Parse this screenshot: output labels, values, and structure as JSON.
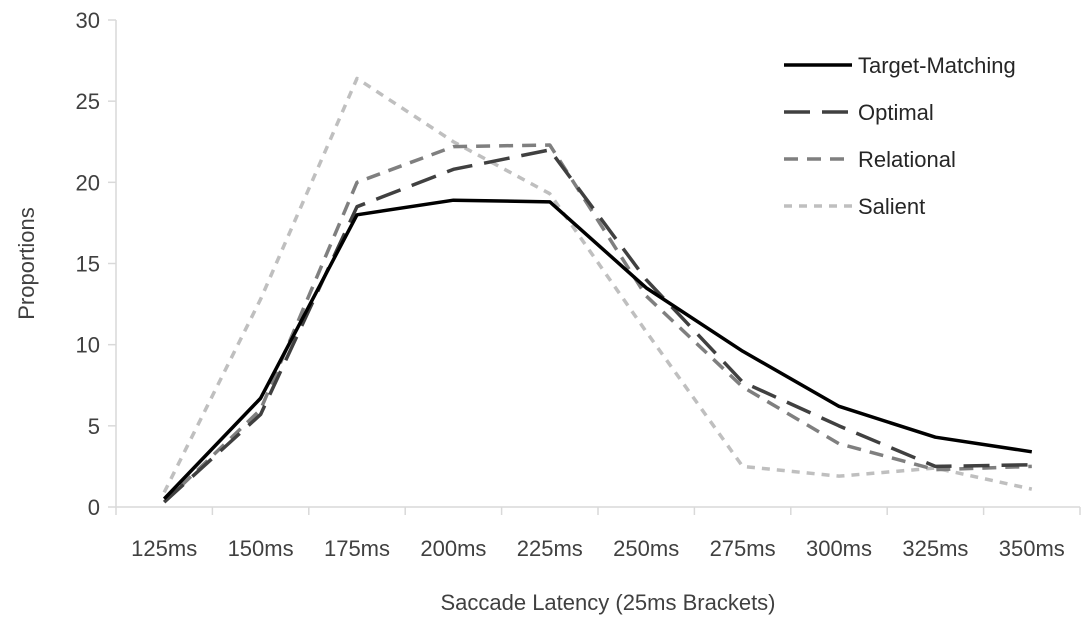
{
  "chart_data": {
    "type": "line",
    "title": "",
    "xlabel": "Saccade Latency (25ms Brackets)",
    "ylabel": "Proportions",
    "categories": [
      "125ms",
      "150ms",
      "175ms",
      "200ms",
      "225ms",
      "250ms",
      "275ms",
      "300ms",
      "325ms",
      "350ms"
    ],
    "ylim": [
      0,
      30
    ],
    "yticks": [
      0,
      5,
      10,
      15,
      20,
      25,
      30
    ],
    "grid": false,
    "legend_position": "top-right",
    "series": [
      {
        "name": "Target-Matching",
        "color": "#000000",
        "dash": "solid",
        "values": [
          0.5,
          6.7,
          18.0,
          18.9,
          18.8,
          13.5,
          9.6,
          6.2,
          4.3,
          3.4
        ]
      },
      {
        "name": "Optimal",
        "color": "#404040",
        "dash": "long-dash",
        "values": [
          0.3,
          5.7,
          18.5,
          20.8,
          22.0,
          14.0,
          7.7,
          5.0,
          2.5,
          2.6
        ]
      },
      {
        "name": "Relational",
        "color": "#7f7f7f",
        "dash": "dash",
        "values": [
          0.3,
          6.0,
          20.0,
          22.2,
          22.3,
          13.0,
          7.4,
          3.9,
          2.3,
          2.5
        ]
      },
      {
        "name": "Salient",
        "color": "#bfbfbf",
        "dash": "short-dash",
        "values": [
          0.9,
          12.8,
          26.4,
          22.5,
          19.3,
          10.8,
          2.5,
          1.9,
          2.4,
          1.1
        ]
      }
    ]
  }
}
